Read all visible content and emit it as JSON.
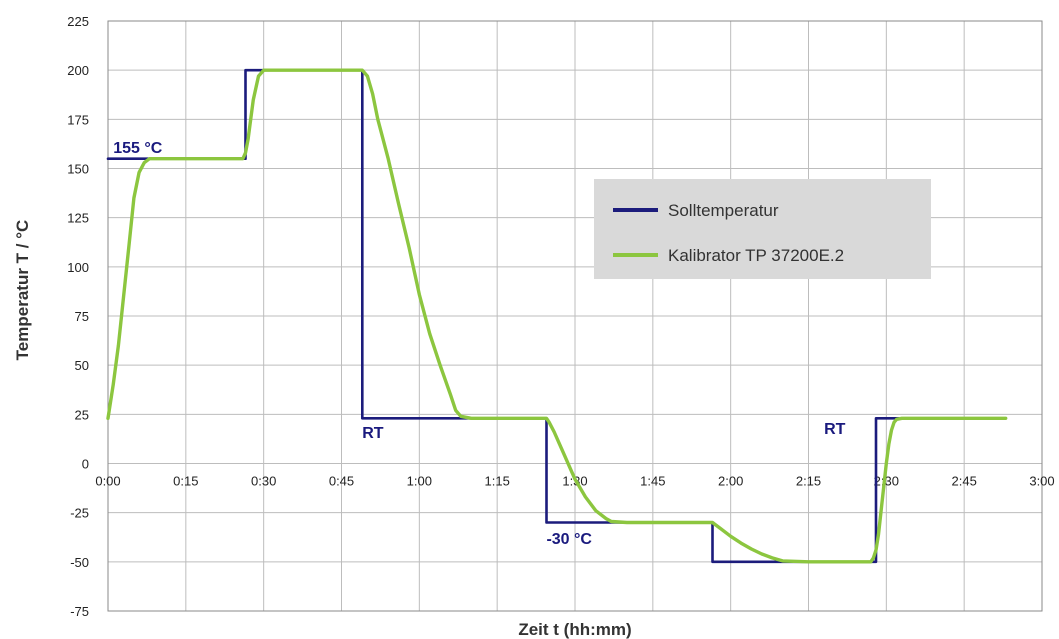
{
  "chart_data": {
    "type": "line",
    "xlabel": "Zeit t (hh:mm)",
    "ylabel": "Temperatur T / °C",
    "xlim": [
      0,
      180
    ],
    "ylim": [
      -75,
      225
    ],
    "x_ticks": [
      0,
      15,
      30,
      45,
      60,
      75,
      90,
      105,
      120,
      135,
      150,
      165,
      180
    ],
    "x_tick_labels": [
      "0:00",
      "0:15",
      "0:30",
      "0:45",
      "1:00",
      "1:15",
      "1:30",
      "1:45",
      "2:00",
      "2:15",
      "2:30",
      "2:45",
      "3:00"
    ],
    "y_ticks": [
      225,
      200,
      175,
      150,
      125,
      100,
      75,
      50,
      25,
      0,
      -25,
      -50,
      -75
    ],
    "y_tick_labels": [
      "225",
      "200",
      "175",
      "150",
      "125",
      "100",
      "75",
      "50",
      "25",
      "0",
      "-25",
      "-50",
      "-75"
    ],
    "grid": true,
    "legend_position": "right-middle",
    "series": [
      {
        "name": "Solltemperatur",
        "color": "#1c1c7c",
        "x": [
          0,
          26.5,
          26.5,
          49,
          49,
          56,
          67,
          67,
          84.5,
          84.5,
          97,
          97,
          116.5,
          116.5,
          127,
          127,
          148,
          148,
          169
        ],
        "y": [
          155,
          155,
          200,
          200,
          23,
          23,
          23,
          23,
          23,
          -30,
          -30,
          -30,
          -30,
          -50,
          -50,
          -50,
          -50,
          23,
          23
        ]
      },
      {
        "name": "Kalibrator TP 37200E.2",
        "color": "#8cc63f",
        "x": [
          0,
          1,
          2,
          3,
          4,
          5,
          6,
          7,
          8,
          9,
          12,
          20,
          26,
          26.5,
          27,
          28,
          29,
          30,
          31,
          32,
          45,
          48,
          49,
          50,
          51,
          52,
          54,
          56,
          58,
          60,
          62,
          64,
          66,
          67,
          68,
          70,
          84.5,
          85,
          86,
          87,
          88,
          89,
          90,
          92,
          94,
          96,
          97,
          100,
          110,
          116.5,
          117,
          118,
          120,
          122,
          124,
          126,
          128,
          130,
          135,
          147,
          147.5,
          148,
          148.5,
          149,
          149.5,
          150,
          150.5,
          151,
          151.5,
          152,
          153,
          155,
          160,
          173
        ],
        "y": [
          23,
          40,
          60,
          85,
          110,
          135,
          148,
          153,
          155,
          155,
          155,
          155,
          155,
          158,
          165,
          185,
          197,
          200,
          200,
          200,
          200,
          200,
          200,
          197,
          188,
          175,
          155,
          132,
          110,
          86,
          66,
          50,
          35,
          27,
          24,
          23,
          23,
          21,
          16,
          10,
          4,
          -2,
          -8,
          -17,
          -24,
          -28,
          -29.5,
          -30,
          -30,
          -30,
          -31,
          -33,
          -37,
          -40.5,
          -43.5,
          -46,
          -48,
          -49.5,
          -50,
          -50,
          -48,
          -44,
          -36,
          -24,
          -12,
          0,
          10,
          17,
          21,
          22.5,
          23,
          23,
          23,
          23
        ]
      }
    ],
    "annotations": [
      {
        "text": "155 °C",
        "x": 1,
        "y": 158
      },
      {
        "text": "RT",
        "x": 49,
        "y": 13
      },
      {
        "text": "-30 °C",
        "x": 84.5,
        "y": -41
      },
      {
        "text": "RT",
        "x": 138,
        "y": 15
      }
    ]
  }
}
